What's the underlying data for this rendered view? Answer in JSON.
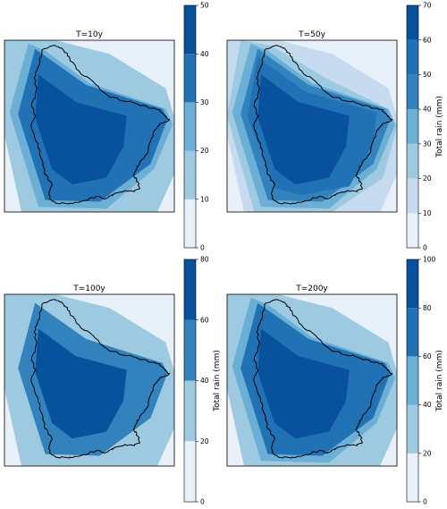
{
  "chart_data": [
    {
      "type": "contour_map",
      "title": "T=10y",
      "colorbar": {
        "label": "",
        "ticks": [
          "0",
          "10",
          "20",
          "30",
          "40",
          "50"
        ],
        "max": 50
      },
      "levels": [
        0,
        10,
        20,
        30,
        40,
        50
      ]
    },
    {
      "type": "contour_map",
      "title": "T=50y",
      "colorbar": {
        "label": "Total rain (mm)",
        "ticks": [
          "0",
          "10",
          "20",
          "30",
          "40",
          "50",
          "60",
          "70"
        ],
        "max": 70
      },
      "levels": [
        0,
        10,
        20,
        30,
        40,
        50,
        60,
        70
      ]
    },
    {
      "type": "contour_map",
      "title": "T=100y",
      "colorbar": {
        "label": "Total rain (mm)",
        "ticks": [
          "0",
          "20",
          "40",
          "60",
          "80"
        ],
        "max": 80
      },
      "levels": [
        0,
        20,
        40,
        60,
        80
      ]
    },
    {
      "type": "contour_map",
      "title": "T=200y",
      "colorbar": {
        "label": "Total rain (mm)",
        "ticks": [
          "0",
          "20",
          "40",
          "60",
          "80",
          "100"
        ],
        "max": 100
      },
      "levels": [
        0,
        20,
        40,
        60,
        80,
        100
      ]
    }
  ],
  "colors": {
    "level_ramp": [
      "#e8f1fa",
      "#c6dbef",
      "#9ecae1",
      "#6baed6",
      "#3182bd",
      "#2171b5",
      "#08519c"
    ],
    "outline": "#000000"
  }
}
